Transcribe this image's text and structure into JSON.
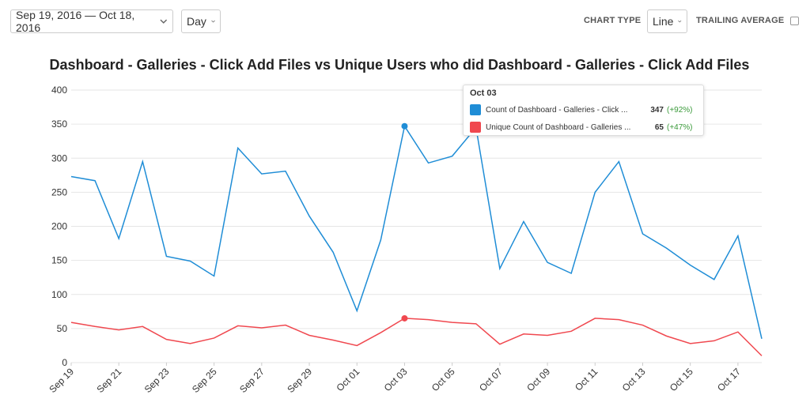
{
  "controls": {
    "date_range": "Sep 19, 2016 — Oct 18, 2016",
    "interval": "Day",
    "chart_type_label": "CHART TYPE",
    "chart_type": "Line",
    "trailing_average_label": "TRAILING AVERAGE"
  },
  "chart_data": {
    "type": "line",
    "title": "Dashboard - Galleries - Click Add Files vs Unique Users who did Dashboard - Galleries - Click Add Files",
    "categories": [
      "Sep 19",
      null,
      "Sep 21",
      null,
      "Sep 23",
      null,
      "Sep 25",
      null,
      "Sep 27",
      null,
      "Sep 29",
      null,
      "Oct 01",
      null,
      "Oct 03",
      null,
      "Oct 05",
      null,
      "Oct 07",
      null,
      "Oct 09",
      null,
      "Oct 11",
      null,
      "Oct 13",
      null,
      "Oct 15",
      null,
      "Oct 17",
      null
    ],
    "series": [
      {
        "name": "Count of Dashboard - Galleries - Click ...",
        "color": "#1f8dd6",
        "values": [
          273,
          267,
          182,
          295,
          156,
          149,
          127,
          315,
          277,
          281,
          215,
          162,
          76,
          180,
          347,
          293,
          303,
          345,
          138,
          207,
          147,
          131,
          250,
          295,
          189,
          168,
          143,
          122,
          186,
          35
        ]
      },
      {
        "name": "Unique Count of Dashboard - Galleries ...",
        "color": "#f0484f",
        "values": [
          59,
          53,
          48,
          53,
          34,
          28,
          36,
          54,
          51,
          55,
          40,
          33,
          25,
          44,
          65,
          63,
          59,
          57,
          27,
          42,
          40,
          46,
          65,
          63,
          55,
          39,
          28,
          32,
          45,
          10
        ]
      }
    ],
    "ylim": [
      0,
      400
    ],
    "yticks": [
      0,
      50,
      100,
      150,
      200,
      250,
      300,
      350,
      400
    ],
    "grid": true,
    "tooltip": {
      "x": "Oct 03",
      "changes": [
        "(+92%)",
        "(+47%)"
      ]
    }
  }
}
